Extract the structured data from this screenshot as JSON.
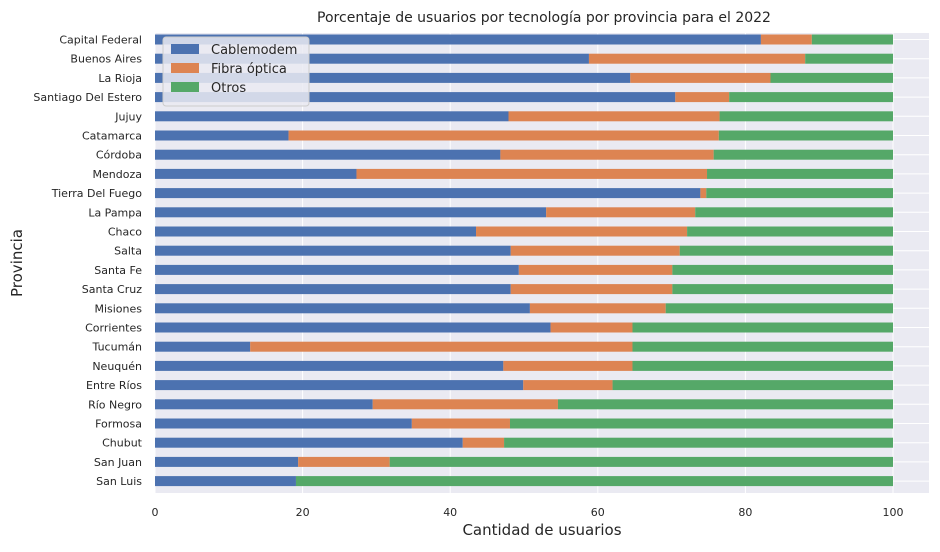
{
  "chart_data": {
    "type": "bar",
    "orientation": "horizontal",
    "stacked": true,
    "title": "Porcentaje de usuarios por tecnología por provincia para el 2022",
    "xlabel": "Cantidad de usuarios",
    "ylabel": "Provincia",
    "xlim": [
      0,
      100
    ],
    "xticks": [
      0,
      20,
      40,
      60,
      80,
      100
    ],
    "grid": true,
    "legend_position": "top-left",
    "categories": [
      "Capital Federal",
      "Buenos Aires",
      "La Rioja",
      "Santiago Del Estero",
      "Jujuy",
      "Catamarca",
      "Córdoba",
      "Mendoza",
      "Tierra Del Fuego",
      "La Pampa",
      "Chaco",
      "Salta",
      "Santa Fe",
      "Santa Cruz",
      "Misiones",
      "Corrientes",
      "Tucumán",
      "Neuquén",
      "Entre Ríos",
      "Río Negro",
      "Formosa",
      "Chubut",
      "San Juan",
      "San Luis"
    ],
    "series": [
      {
        "name": "Cablemodem",
        "color": "#4c72b0",
        "values": [
          82.1,
          58.8,
          64.4,
          70.5,
          47.9,
          18.1,
          46.8,
          27.3,
          73.9,
          53.0,
          43.5,
          48.2,
          49.3,
          48.2,
          50.8,
          53.6,
          12.9,
          47.2,
          49.9,
          29.5,
          34.8,
          41.7,
          19.4,
          19.1
        ]
      },
      {
        "name": "Fibra óptica",
        "color": "#dd8452",
        "values": [
          6.9,
          29.3,
          19.0,
          7.3,
          28.6,
          58.3,
          28.9,
          47.5,
          0.8,
          20.2,
          28.6,
          22.9,
          20.8,
          21.9,
          18.4,
          11.1,
          51.8,
          17.5,
          12.1,
          25.1,
          13.3,
          5.6,
          12.4,
          0.0
        ]
      },
      {
        "name": "Otros",
        "color": "#55a868",
        "values": [
          11.0,
          11.9,
          16.6,
          22.2,
          23.5,
          23.6,
          24.3,
          25.2,
          25.3,
          26.8,
          27.9,
          28.9,
          29.9,
          29.9,
          30.8,
          35.3,
          35.3,
          35.3,
          38.0,
          45.4,
          51.9,
          52.7,
          68.2,
          80.9
        ]
      }
    ]
  }
}
